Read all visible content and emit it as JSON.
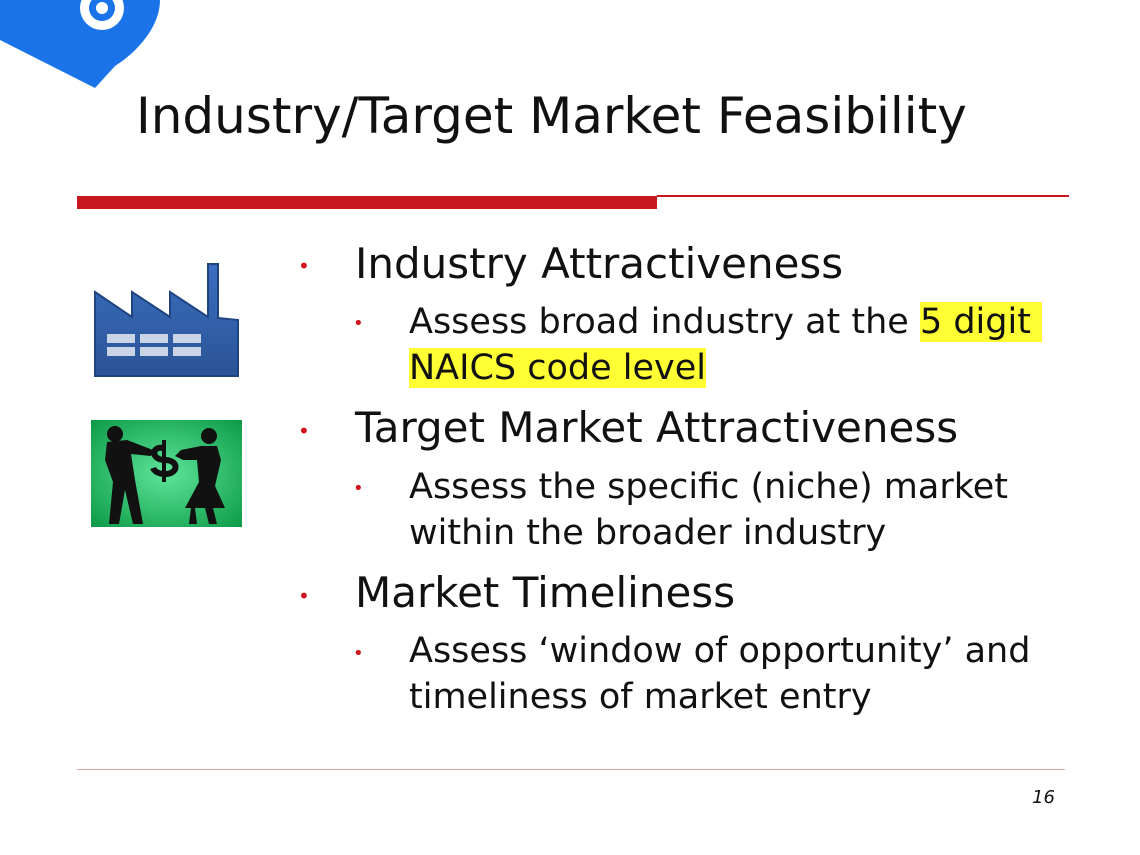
{
  "slide": {
    "title": "Industry/Target Market Feasibility",
    "page_number": "16"
  },
  "bullets": [
    {
      "heading": "Industry Attractiveness",
      "sub_prefix": "Assess broad industry at the ",
      "sub_highlight_line1": "5 digit ",
      "sub_highlight_line2": "NAICS code level"
    },
    {
      "heading": "Target Market Attractiveness",
      "sub_line1": "Assess the specific (niche) market",
      "sub_line2": "within the broader industry"
    },
    {
      "heading": "Market Timeliness",
      "sub_line1": "Assess ‘window of opportunity’ and",
      "sub_line2": "timeliness of market entry"
    }
  ],
  "colors": {
    "accent_red": "#c8181e",
    "highlight_yellow": "#ffff33",
    "factory_blue": "#2f5fa8",
    "tug_green": "#1db45e"
  },
  "icons": {
    "logo": "target-logo-icon",
    "factory": "factory-icon",
    "tug_of_war": "tug-of-war-dollar-image"
  }
}
